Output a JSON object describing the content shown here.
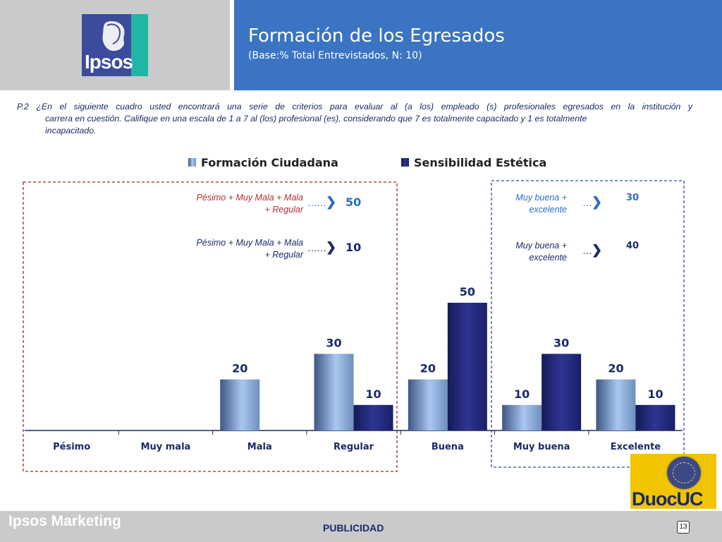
{
  "header": {
    "logo_text": "Ipsos",
    "title": "Formación de los Egresados",
    "subtitle": "(Base:% Total Entrevistados, N: 10)"
  },
  "question": {
    "line1": "P.2 ¿En el siguiente cuadro usted encontrará una serie de criterios para evaluar al (a los) empleado (s) profesionales egresados en la institución y",
    "line2": "carrera en cuestión. Califique en una escala de 1 a 7 al (los) profesional (es), considerando que 7 es totalmente capacitado y 1 es totalmente",
    "line3": "incapacitado."
  },
  "notes": {
    "neg1_l1": "Pésimo + Muy Mala + Mala",
    "neg1_l2": "+ Regular",
    "neg1_val": "50",
    "neg2_l1": "Pésimo + Muy Mala + Mala",
    "neg2_l2": "+ Regular",
    "neg2_val": "10",
    "pos1_l1": "Muy buena +",
    "pos1_l2": "excelente",
    "pos1_val": "30",
    "pos2_l1": "Muy buena +",
    "pos2_l2": "excelente",
    "pos2_val": "40",
    "arrow_dots": "……"
  },
  "colors": {
    "series1": "#8fb0dc",
    "series2": "#22277a",
    "neg_box": "#9b2a2a",
    "pos_box": "#2a4f90",
    "header_blue": "#3a74c3"
  },
  "chart_data": {
    "type": "bar",
    "categories": [
      "Pésimo",
      "Muy mala",
      "Mala",
      "Regular",
      "Buena",
      "Muy buena",
      "Excelente"
    ],
    "series": [
      {
        "name": "Formación Ciudadana",
        "values": [
          0,
          0,
          20,
          30,
          20,
          10,
          20
        ]
      },
      {
        "name": "Sensibilidad Estética",
        "values": [
          0,
          0,
          0,
          10,
          50,
          30,
          10
        ]
      }
    ],
    "ylim": [
      0,
      60
    ],
    "legend_position": "top",
    "grid": false
  },
  "logo2": {
    "text": "DuocUC"
  },
  "footer": {
    "brand": "Ipsos Marketing",
    "center": "PUBLICIDAD",
    "page": "13"
  }
}
